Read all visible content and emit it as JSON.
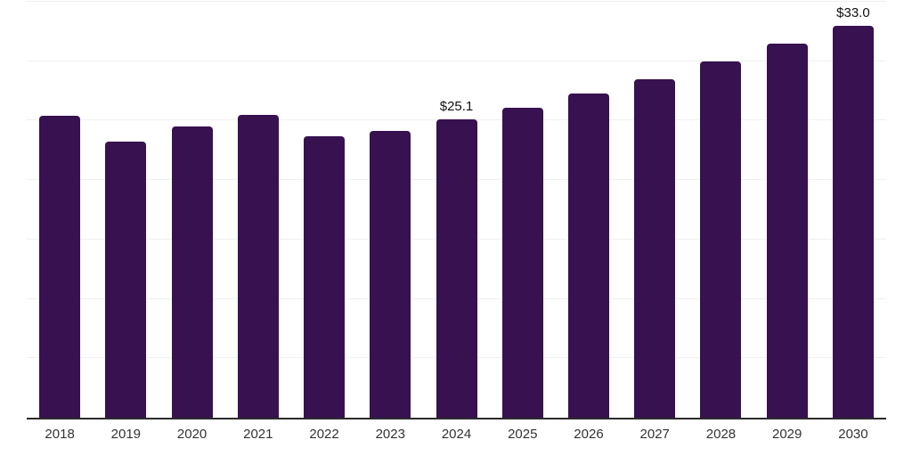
{
  "chart_data": {
    "type": "bar",
    "title": "",
    "xlabel": "",
    "ylabel": "",
    "categories": [
      "2018",
      "2019",
      "2020",
      "2021",
      "2022",
      "2023",
      "2024",
      "2025",
      "2026",
      "2027",
      "2028",
      "2029",
      "2030"
    ],
    "values": [
      25.4,
      23.2,
      24.5,
      25.5,
      23.7,
      24.1,
      25.1,
      26.1,
      27.3,
      28.5,
      30.0,
      31.5,
      33.0
    ],
    "data_labels": [
      "",
      "",
      "",
      "",
      "",
      "",
      "$25.1",
      "",
      "",
      "",
      "",
      "",
      "$33.0"
    ],
    "ylim": [
      0,
      35
    ],
    "gridline_step": 5,
    "grid": true,
    "legend": "none",
    "colors": {
      "bar": "#371150",
      "axis_line": "#2b2b2b",
      "gridline": "#f0f0f0",
      "tick_label": "#333333",
      "data_label": "#111111",
      "background": "#ffffff"
    }
  }
}
